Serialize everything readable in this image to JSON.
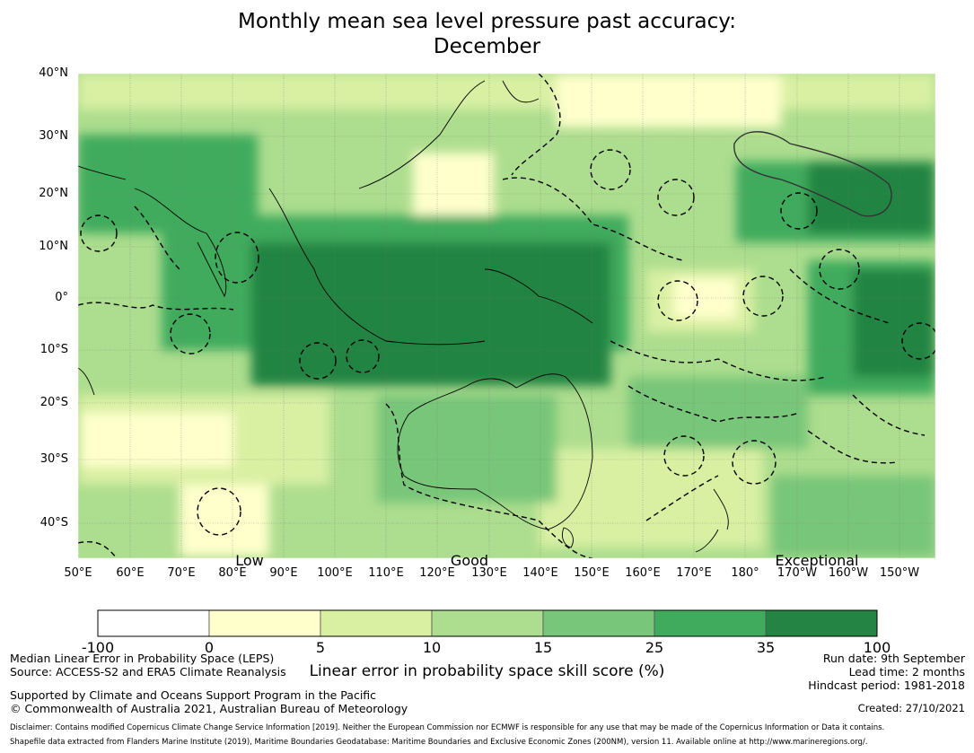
{
  "title": {
    "line1": "Monthly mean sea level pressure past accuracy:",
    "line2": "December"
  },
  "map": {
    "lat_labels": [
      "40°N",
      "30°N",
      "20°N",
      "10°N",
      "0°",
      "10°S",
      "20°S",
      "30°S",
      "40°S"
    ],
    "lon_labels": [
      "50°E",
      "60°E",
      "70°E",
      "80°E",
      "90°E",
      "100°E",
      "110°E",
      "120°E",
      "130°E",
      "140°E",
      "150°E",
      "160°E",
      "170°E",
      "180°",
      "170°W",
      "160°W",
      "150°W"
    ],
    "categories": [
      "Low",
      "Good",
      "Exceptional"
    ]
  },
  "colorbar": {
    "ticks": [
      "-100",
      "0",
      "5",
      "10",
      "15",
      "25",
      "35",
      "100"
    ],
    "colors": [
      "#ffffff",
      "#ffffcc",
      "#d9f0a3",
      "#addd8e",
      "#78c679",
      "#41ab5d",
      "#238443"
    ],
    "label": "Linear error in probability space skill score (%)"
  },
  "footer": {
    "left_line1": "Median Linear Error in Probability Space (LEPS)",
    "left_line2": "Source: ACCESS-S2 and ERA5 Climate Reanalysis",
    "left_line3": "Supported by Climate and Oceans Support Program in the Pacific",
    "left_line4": "© Commonwealth of Australia 2021, Australian Bureau of Meteorology",
    "right_line1": "Run date: 9th September",
    "right_line2": "Lead time: 2 months",
    "right_line3": "Hindcast period: 1981-2018",
    "created": "Created: 27/10/2021",
    "disclaimer": "Disclaimer: Contains modified Copernicus Climate Change Service Information [2019]. Neither the European Commission nor ECMWF is responsible for any use that may be made of the Copernicus Information or Data it contains.",
    "shapefile": "Shapefile data extracted from Flanders Marine Institute (2019), Maritime Boundaries Geodatabase: Maritime Boundaries and Exclusive Economic Zones (200NM), version 11. Available online at http://www.marineregions.org/."
  }
}
